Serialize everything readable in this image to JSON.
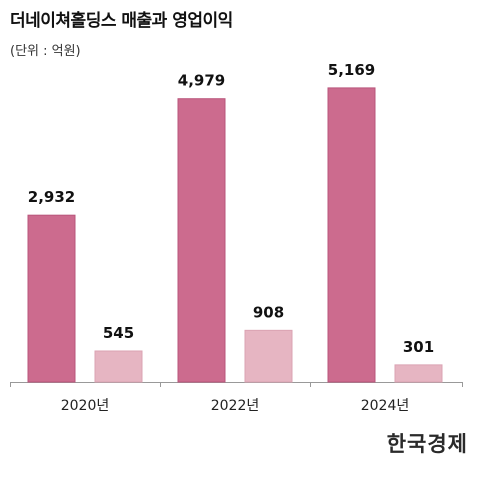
{
  "title": "더네이쳐홀딩스 매출과 영업이익",
  "unit_label": "(단위 : 억원)",
  "logo_text": "한국경제",
  "colors": {
    "revenue": "#cc6b8e",
    "revenue_stroke": "#b9557b",
    "operating_profit": "#e6b5c2",
    "operating_profit_stroke": "#dba3b3",
    "axis": "#999999",
    "text": "#111111"
  },
  "chart_data": {
    "type": "bar",
    "categories": [
      "2020년",
      "2022년",
      "2024년"
    ],
    "series": [
      {
        "values": [
          2932,
          4979,
          5169
        ],
        "labels": [
          "2,932",
          "4,979",
          "5,169"
        ]
      },
      {
        "values": [
          545,
          908,
          301
        ],
        "labels": [
          "545",
          "908",
          "301"
        ]
      }
    ],
    "ylim": [
      0,
      5800
    ],
    "grid": false,
    "legend": "none"
  }
}
